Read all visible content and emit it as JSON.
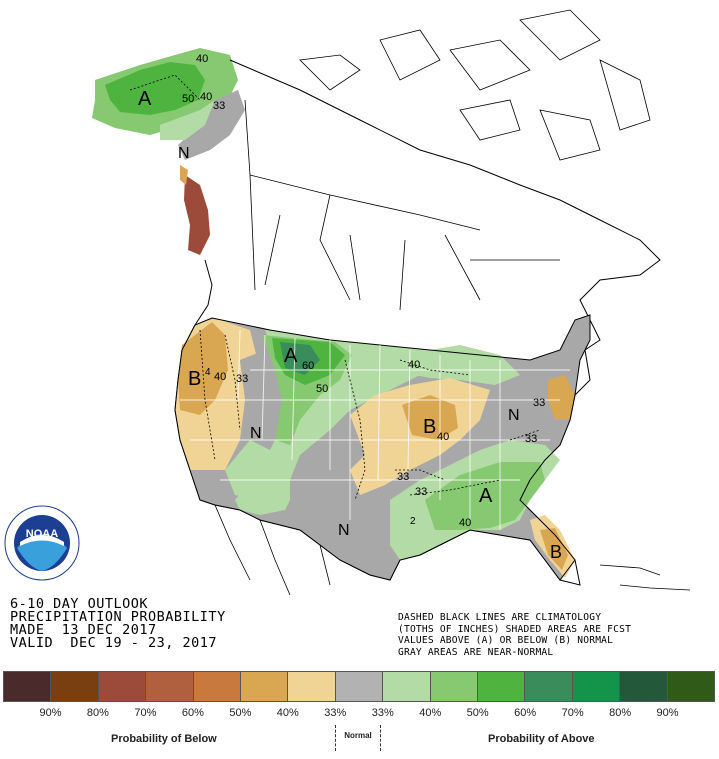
{
  "product": {
    "line1": "6-10 DAY OUTLOOK",
    "line2": "PRECIPITATION PROBABILITY",
    "line3": "MADE  13 DEC 2017",
    "line4": "VALID  DEC 19 - 23, 2017"
  },
  "notes": {
    "line1": "DASHED BLACK LINES ARE CLIMATOLOGY",
    "line2": "(TOTHS OF INCHES) SHADED AREAS ARE FCST",
    "line3": "VALUES ABOVE (A) OR BELOW (B) NORMAL",
    "line4": "GRAY AREAS ARE NEAR-NORMAL"
  },
  "logo": {
    "text": "NOAA",
    "ring_text": "NATIONAL OCEANIC AND ATMOSPHERIC ADMINISTRATION · U.S. DEPARTMENT OF COMMERCE"
  },
  "map_labels": {
    "alaska_a": "A",
    "alaska_50": "50",
    "alaska_40a": "40",
    "alaska_40b": "40",
    "alaska_33": "33",
    "yukon_n": "N",
    "mt_a": "A",
    "mt_60": "60",
    "mt_50": "50",
    "or_b": "B",
    "or_4": "4",
    "or_40": "40",
    "or_33": "33",
    "rockies_n": "N",
    "mw_b": "B",
    "mw_40": "40",
    "gl_40": "40",
    "ne_n": "N",
    "east_33a": "33",
    "east_33b": "33",
    "plains_33a": "33",
    "plains_33b": "33",
    "se_a": "A",
    "se_40": "40",
    "se_2": "2",
    "tx_n": "N",
    "fl_b": "B"
  },
  "legend": {
    "colors": [
      "#4a2a2a",
      "#7a3f10",
      "#9c4a3a",
      "#b0603e",
      "#c8793e",
      "#d9a752",
      "#f0d496",
      "#b2b2b2",
      "#b3dba6",
      "#86c971",
      "#4fb43f",
      "#3a8c5a",
      "#14944a",
      "#24583a",
      "#2f5a18"
    ],
    "labels": [
      "90%",
      "80%",
      "70%",
      "60%",
      "50%",
      "40%",
      "33%",
      "33%",
      "40%",
      "50%",
      "60%",
      "70%",
      "80%",
      "90%"
    ],
    "below_caption": "Probability of Below",
    "normal_caption": "Normal",
    "above_caption": "Probability of Above"
  },
  "colors": {
    "below_33": "#f0d496",
    "below_40": "#d9a752",
    "below_50": "#c8793e",
    "below_70": "#9c4a3a",
    "near_normal": "#a8a8a8",
    "above_33": "#b3dba6",
    "above_40": "#86c971",
    "above_50": "#4fb43f",
    "above_60": "#3a8c5a"
  }
}
